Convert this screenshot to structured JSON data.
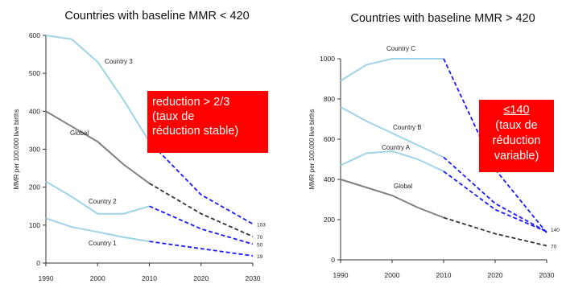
{
  "chart_data": [
    {
      "type": "line",
      "title": "Countries with baseline MMR < 420",
      "ylabel": "MMR per 100,000 live births",
      "xlim": [
        1990,
        2030
      ],
      "ylim": [
        0,
        600
      ],
      "x_ticks": [
        "1990",
        "2000",
        "2010",
        "2020",
        "2030"
      ],
      "y_ticks": [
        "0",
        "100",
        "200",
        "300",
        "400",
        "500",
        "600"
      ],
      "series": [
        {
          "name": "Country 3",
          "color": "#9fd3e6",
          "observed": [
            [
              1990,
              600
            ],
            [
              1995,
              590
            ],
            [
              2000,
              530
            ],
            [
              2005,
              430
            ],
            [
              2010,
              320
            ]
          ],
          "projection_color": "#1a1aff",
          "projection_end": 103,
          "projected": [
            [
              2010,
              320
            ],
            [
              2020,
              180
            ],
            [
              2030,
              103
            ]
          ]
        },
        {
          "name": "Global",
          "color": "#808080",
          "observed": [
            [
              1990,
              400
            ],
            [
              1995,
              360
            ],
            [
              2000,
              320
            ],
            [
              2005,
              260
            ],
            [
              2010,
              210
            ]
          ],
          "projection_color": "#333333",
          "projection_end": 70,
          "projected": [
            [
              2010,
              210
            ],
            [
              2020,
              130
            ],
            [
              2030,
              70
            ]
          ]
        },
        {
          "name": "Country 2",
          "color": "#9fd3e6",
          "observed": [
            [
              1990,
              215
            ],
            [
              1995,
              175
            ],
            [
              2000,
              130
            ],
            [
              2005,
              130
            ],
            [
              2010,
              150
            ]
          ],
          "projection_color": "#1a1aff",
          "projection_end": 50,
          "projected": [
            [
              2010,
              150
            ],
            [
              2020,
              90
            ],
            [
              2030,
              50
            ]
          ]
        },
        {
          "name": "Country 1",
          "color": "#9fd3e6",
          "observed": [
            [
              1990,
              118
            ],
            [
              1995,
              95
            ],
            [
              2000,
              82
            ],
            [
              2005,
              68
            ],
            [
              2010,
              57
            ]
          ],
          "projection_color": "#1a1aff",
          "projection_end": 19,
          "projected": [
            [
              2010,
              57
            ],
            [
              2020,
              38
            ],
            [
              2030,
              19
            ]
          ]
        }
      ],
      "callout": {
        "lines": [
          "reduction > 2/3",
          "(taux de",
          "réduction stable)"
        ],
        "color": "#ff0000"
      }
    },
    {
      "type": "line",
      "title": "Countries with baseline MMR > 420",
      "ylabel": "MMR per 100,000 live births",
      "xlim": [
        1990,
        2030
      ],
      "ylim": [
        0,
        1100
      ],
      "x_ticks": [
        "1990",
        "2000",
        "2010",
        "2020",
        "2030"
      ],
      "y_ticks": [
        "0",
        "200",
        "400",
        "600",
        "800",
        "1000"
      ],
      "series": [
        {
          "name": "Country C",
          "color": "#9fd3e6",
          "observed": [
            [
              1990,
              890
            ],
            [
              1995,
              970
            ],
            [
              2000,
              1000
            ],
            [
              2005,
              1000
            ],
            [
              2010,
              1000
            ]
          ],
          "projection_color": "#1a1aff",
          "projection_end": null,
          "projected": [
            [
              2010,
              1000
            ],
            [
              2020,
              450
            ],
            [
              2030,
              135
            ]
          ]
        },
        {
          "name": "Country B",
          "color": "#9fd3e6",
          "observed": [
            [
              1990,
              760
            ],
            [
              1995,
              690
            ],
            [
              2000,
              630
            ],
            [
              2005,
              570
            ],
            [
              2010,
              510
            ]
          ],
          "projection_color": "#1a1aff",
          "projection_end": null,
          "projected": [
            [
              2010,
              510
            ],
            [
              2020,
              280
            ],
            [
              2030,
              140
            ]
          ]
        },
        {
          "name": "Country A",
          "color": "#9fd3e6",
          "observed": [
            [
              1990,
              470
            ],
            [
              1995,
              530
            ],
            [
              2000,
              540
            ],
            [
              2005,
              500
            ],
            [
              2010,
              440
            ]
          ],
          "projection_color": "#1a1aff",
          "projection_end": 140,
          "projected": [
            [
              2010,
              440
            ],
            [
              2020,
              250
            ],
            [
              2030,
              140
            ]
          ]
        },
        {
          "name": "Global",
          "color": "#808080",
          "observed": [
            [
              1990,
              400
            ],
            [
              1995,
              360
            ],
            [
              2000,
              320
            ],
            [
              2005,
              260
            ],
            [
              2010,
              210
            ]
          ],
          "projection_color": "#333333",
          "projection_end": 70,
          "projected": [
            [
              2010,
              210
            ],
            [
              2020,
              130
            ],
            [
              2030,
              70
            ]
          ]
        }
      ],
      "callout": {
        "lines": [
          "≤140",
          "(taux de",
          "réduction",
          "variable)"
        ],
        "color": "#ff0000"
      }
    }
  ]
}
